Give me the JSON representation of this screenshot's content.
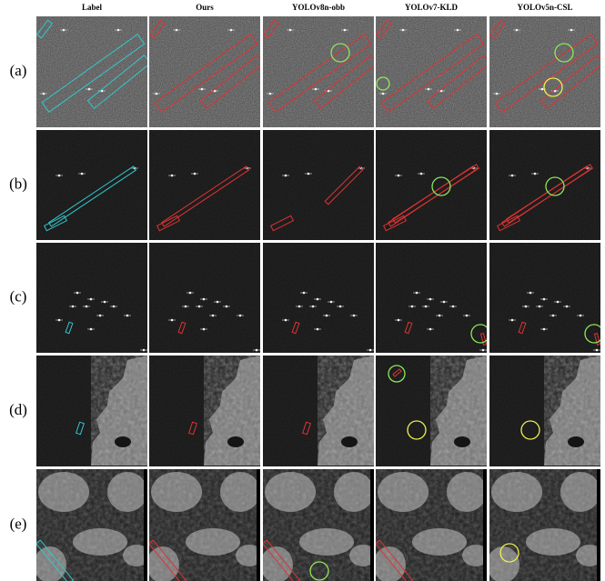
{
  "columns": [
    "Label",
    "Ours",
    "YOLOv8n-obb",
    "YOLOv7-KLD",
    "YOLOv5n-CSL"
  ],
  "rows": [
    "(a)",
    "(b)",
    "(c)",
    "(d)",
    "(e)"
  ]
}
